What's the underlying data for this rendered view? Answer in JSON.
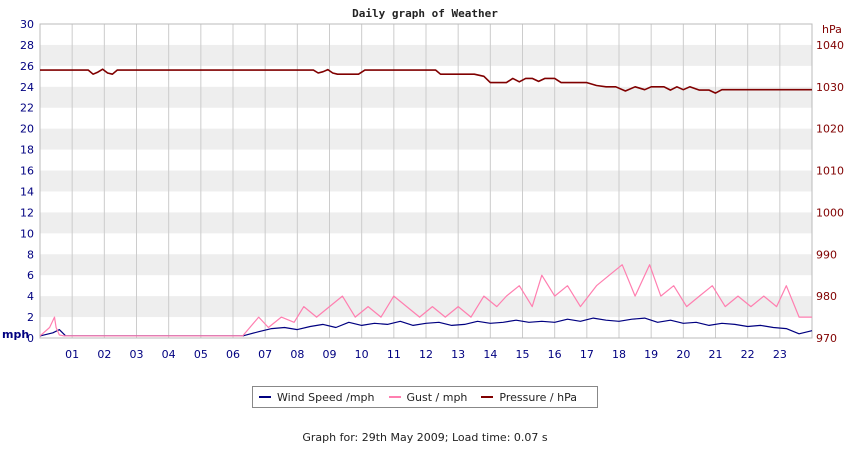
{
  "chart_data": {
    "type": "line",
    "title": "Daily graph of Weather",
    "left_axis": {
      "unit": "mph",
      "ylim": [
        0,
        30
      ],
      "ticks": [
        0,
        2,
        4,
        6,
        8,
        10,
        12,
        14,
        16,
        18,
        20,
        22,
        24,
        26,
        28,
        30
      ]
    },
    "right_axis": {
      "unit": "hPa",
      "ylim": [
        970,
        1045
      ],
      "ticks": [
        970,
        980,
        990,
        1000,
        1010,
        1020,
        1030,
        1040
      ]
    },
    "x_axis": {
      "xlim": [
        0,
        24
      ],
      "ticks": [
        "01",
        "02",
        "03",
        "04",
        "05",
        "06",
        "07",
        "08",
        "09",
        "10",
        "11",
        "12",
        "13",
        "14",
        "15",
        "16",
        "17",
        "18",
        "19",
        "20",
        "21",
        "22",
        "23"
      ]
    },
    "grid": true,
    "legend_position": "bottom",
    "series": [
      {
        "name": "Wind Speed /mph",
        "axis": "left",
        "color": "#000080",
        "x": [
          0,
          0.4,
          0.6,
          0.8,
          6.3,
          6.8,
          7.2,
          7.6,
          8.0,
          8.4,
          8.8,
          9.2,
          9.6,
          10.0,
          10.4,
          10.8,
          11.2,
          11.6,
          12.0,
          12.4,
          12.8,
          13.2,
          13.6,
          14.0,
          14.4,
          14.8,
          15.2,
          15.6,
          16.0,
          16.4,
          16.8,
          17.2,
          17.6,
          18.0,
          18.4,
          18.8,
          19.2,
          19.6,
          20.0,
          20.4,
          20.8,
          21.2,
          21.6,
          22.0,
          22.4,
          22.8,
          23.2,
          23.6,
          24.0
        ],
        "y": [
          0.2,
          0.5,
          0.8,
          0.2,
          0.2,
          0.6,
          0.9,
          1.0,
          0.8,
          1.1,
          1.3,
          1.0,
          1.5,
          1.2,
          1.4,
          1.3,
          1.6,
          1.2,
          1.4,
          1.5,
          1.2,
          1.3,
          1.6,
          1.4,
          1.5,
          1.7,
          1.5,
          1.6,
          1.5,
          1.8,
          1.6,
          1.9,
          1.7,
          1.6,
          1.8,
          1.9,
          1.5,
          1.7,
          1.4,
          1.5,
          1.2,
          1.4,
          1.3,
          1.1,
          1.2,
          1.0,
          0.9,
          0.4,
          0.7
        ]
      },
      {
        "name": "Gust / mph",
        "axis": "left",
        "color": "#ff7fb0",
        "x": [
          0,
          0.3,
          0.45,
          0.5,
          0.6,
          0.75,
          6.3,
          6.8,
          7.1,
          7.5,
          7.9,
          8.2,
          8.6,
          9.0,
          9.4,
          9.8,
          10.2,
          10.6,
          11.0,
          11.4,
          11.8,
          12.2,
          12.6,
          13.0,
          13.4,
          13.8,
          14.2,
          14.5,
          14.9,
          15.3,
          15.6,
          16.0,
          16.4,
          16.8,
          17.3,
          17.7,
          18.1,
          18.5,
          18.95,
          19.3,
          19.7,
          20.1,
          20.5,
          20.9,
          21.3,
          21.7,
          22.1,
          22.5,
          22.9,
          23.2,
          23.6,
          24.0
        ],
        "y": [
          0.2,
          1.0,
          2.0,
          1.0,
          0.3,
          0.2,
          0.2,
          2.0,
          1.0,
          2.0,
          1.5,
          3.0,
          2.0,
          3.0,
          4.0,
          2.0,
          3.0,
          2.0,
          4.0,
          3.0,
          2.0,
          3.0,
          2.0,
          3.0,
          2.0,
          4.0,
          3.0,
          4.0,
          5.0,
          3.0,
          6.0,
          4.0,
          5.0,
          3.0,
          5.0,
          6.0,
          7.0,
          4.0,
          7.0,
          4.0,
          5.0,
          3.0,
          4.0,
          5.0,
          3.0,
          4.0,
          3.0,
          4.0,
          3.0,
          5.0,
          2.0,
          2.0
        ]
      },
      {
        "name": "Pressure / hPa",
        "axis": "right",
        "color": "#800000",
        "x": [
          0,
          1.5,
          1.65,
          1.8,
          1.95,
          2.1,
          2.25,
          2.4,
          2.55,
          8.5,
          8.65,
          8.8,
          8.95,
          9.1,
          9.25,
          9.4,
          9.9,
          10.1,
          10.3,
          12.3,
          12.45,
          12.6,
          13.5,
          13.8,
          14.0,
          14.2,
          14.5,
          14.7,
          14.9,
          15.1,
          15.3,
          15.5,
          15.7,
          16.0,
          16.2,
          16.5,
          17.0,
          17.3,
          17.6,
          17.9,
          18.2,
          18.5,
          18.8,
          19.0,
          19.2,
          19.4,
          19.6,
          19.8,
          20.0,
          20.2,
          20.5,
          20.8,
          21.0,
          21.2,
          21.6,
          24.0
        ],
        "y": [
          1034.0,
          1034.0,
          1033.0,
          1033.5,
          1034.2,
          1033.3,
          1033.0,
          1034.0,
          1034.0,
          1034.0,
          1033.3,
          1033.6,
          1034.1,
          1033.3,
          1033.0,
          1033.0,
          1033.0,
          1034.0,
          1034.0,
          1034.0,
          1033.0,
          1033.0,
          1033.0,
          1032.5,
          1031.0,
          1031.0,
          1031.0,
          1032.0,
          1031.2,
          1032.0,
          1032.0,
          1031.3,
          1032.0,
          1032.0,
          1031.0,
          1031.0,
          1031.0,
          1030.3,
          1030.0,
          1030.0,
          1029.0,
          1030.0,
          1029.3,
          1030.0,
          1030.0,
          1030.0,
          1029.2,
          1030.0,
          1029.3,
          1030.0,
          1029.2,
          1029.2,
          1028.5,
          1029.3,
          1029.3,
          1029.3
        ]
      }
    ]
  },
  "legend": {
    "items": [
      {
        "label": "Wind Speed /mph",
        "color": "#000080"
      },
      {
        "label": "Gust / mph",
        "color": "#ff7fb0"
      },
      {
        "label": "Pressure / hPa",
        "color": "#800000"
      }
    ]
  },
  "footer": {
    "text": "Graph for: 29th May 2009; Load time: 0.07 s"
  }
}
